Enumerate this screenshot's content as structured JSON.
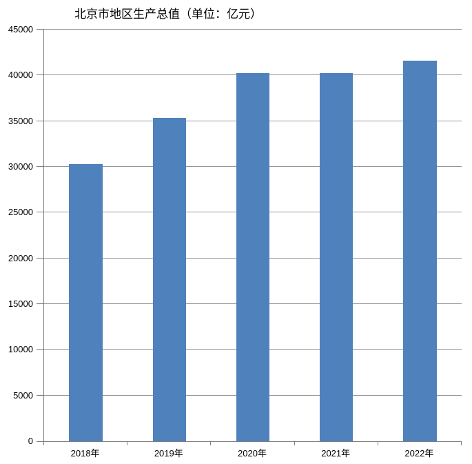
{
  "chart_data": {
    "type": "bar",
    "title": "北京市地区生产总值（单位：亿元）",
    "categories": [
      "2018年",
      "2019年",
      "2020年",
      "2021年",
      "2022年"
    ],
    "values": [
      30320,
      35370,
      40250,
      40250,
      41610
    ],
    "xlabel": "",
    "ylabel": "",
    "ylim": [
      0,
      45000
    ],
    "ytick_interval": 5000,
    "ytick_labels": [
      "0",
      "5000",
      "10000",
      "15000",
      "20000",
      "25000",
      "30000",
      "35000",
      "40000",
      "45000"
    ],
    "grid": true,
    "legend": "none",
    "colors": {
      "bar": "#4F81BD",
      "gridline": "#969696",
      "axis": "#7f7f7f",
      "text": "#000000",
      "background": "#FFFFFF"
    }
  }
}
